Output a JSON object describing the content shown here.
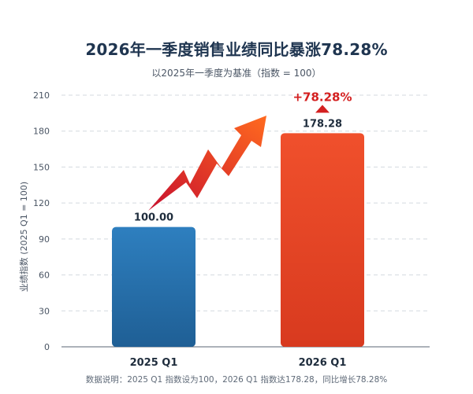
{
  "header": {
    "title": "2026年一季度销售业绩同比暴涨78.28%",
    "subtitle": "以2025年一季度为基准（指数 = 100）"
  },
  "footer": {
    "note": "数据说明：2025 Q1 指数设为100，2026 Q1 指数达178.28，同比增长78.28%"
  },
  "colors": {
    "bar_2025": "#1f5f95",
    "bar_2025_light": "#2e7fbf",
    "bar_2026": "#d83a1f",
    "bar_2026_light": "#f0502c",
    "growth_red": "#d42020",
    "arrow_dark": "#c8102e",
    "arrow_light": "#ff6a1f"
  },
  "chart_data": {
    "type": "bar",
    "categories": [
      "2025 Q1",
      "2026 Q1"
    ],
    "values": [
      100.0,
      178.28
    ],
    "value_labels": [
      "100.00",
      "178.28"
    ],
    "ylabel": "业绩指数 (2025 Q1 = 100)",
    "xlabel": "",
    "ylim": [
      0,
      210
    ],
    "yticks": [
      0,
      30,
      60,
      90,
      120,
      150,
      180,
      210
    ],
    "grid": true,
    "annotation": {
      "text": "+78.28%",
      "category": "2026 Q1",
      "icon": "up-triangle-icon"
    },
    "trend_arrow": "zigzag-up-arrow-icon"
  }
}
